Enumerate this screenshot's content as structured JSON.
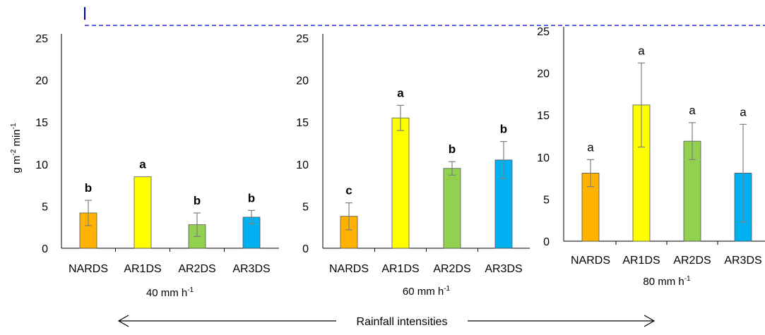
{
  "ylabel": "g m-2 min-1",
  "ylabel_parts": {
    "base": "g m",
    "exp1": "-2",
    "mid": " min",
    "exp2": "-1"
  },
  "footer_label": "Rainfall intensities",
  "unit_suffix": " mm h",
  "unit_exp": "-1",
  "colors": {
    "NARDS": "#FFB300",
    "AR1DS": "#FFFF00",
    "AR2DS": "#92D050",
    "AR3DS": "#00B0F0",
    "dashed": "#0000CC",
    "error": "#7F7F7F"
  },
  "chart_data": [
    {
      "type": "bar",
      "intensity": "40",
      "categories": [
        "NARDS",
        "AR1DS",
        "AR2DS",
        "AR3DS"
      ],
      "values": [
        4.2,
        8.5,
        2.8,
        3.7
      ],
      "errors": [
        1.5,
        0,
        1.4,
        0.8
      ],
      "letters": [
        "b",
        "a",
        "b",
        "b"
      ],
      "letters_bold": true,
      "ylim": [
        0,
        25
      ],
      "yticks": [
        0,
        5,
        10,
        15,
        20,
        25
      ]
    },
    {
      "type": "bar",
      "intensity": "60",
      "categories": [
        "NARDS",
        "AR1DS",
        "AR2DS",
        "AR3DS"
      ],
      "values": [
        3.8,
        15.5,
        9.5,
        10.5
      ],
      "errors": [
        1.6,
        1.5,
        0.8,
        2.2
      ],
      "letters": [
        "c",
        "a",
        "b",
        "b"
      ],
      "letters_bold": true,
      "ylim": [
        0,
        25
      ],
      "yticks": [
        0,
        5,
        10,
        15,
        20,
        25
      ]
    },
    {
      "type": "bar",
      "intensity": "80",
      "categories": [
        "NARDS",
        "AR1DS",
        "AR2DS",
        "AR3DS"
      ],
      "values": [
        8.1,
        16.2,
        11.9,
        8.1
      ],
      "errors": [
        1.6,
        5.0,
        2.2,
        5.8
      ],
      "letters": [
        "a",
        "a",
        "a",
        "a"
      ],
      "letters_bold": false,
      "ylim": [
        0,
        25
      ],
      "yticks": [
        0,
        5,
        10,
        15,
        20,
        25
      ]
    }
  ]
}
